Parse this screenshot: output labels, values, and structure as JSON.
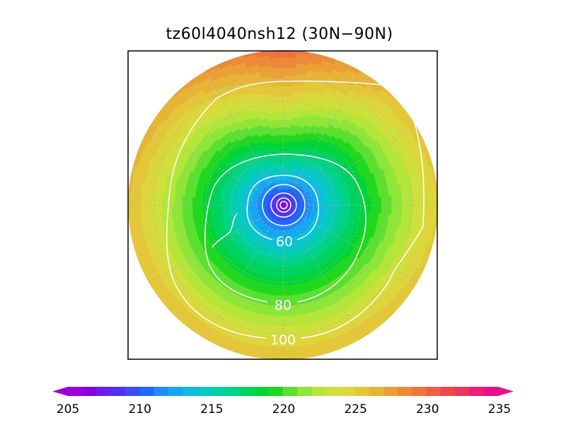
{
  "map": {
    "title": "tz60l4040nsh12 (30N−90N)",
    "projection": "north-polar-stereographic",
    "lat_range": [
      30,
      90
    ],
    "field": {
      "name": "",
      "units": "",
      "min_shown": 205,
      "max_shown": 235,
      "pole_value": 205,
      "rim_values_by_lon": [
        {
          "lon": 0,
          "value": 226
        },
        {
          "lon": 45,
          "value": 226
        },
        {
          "lon": 90,
          "value": 225
        },
        {
          "lon": 135,
          "value": 226
        },
        {
          "lon": 180,
          "value": 230
        },
        {
          "lon": 225,
          "value": 227
        },
        {
          "lon": 270,
          "value": 226
        },
        {
          "lon": 315,
          "value": 226
        }
      ]
    },
    "contours": [
      {
        "label": "60"
      },
      {
        "label": "80"
      },
      {
        "label": "100"
      }
    ],
    "grid": {
      "parallels_deg": [
        40,
        50,
        60,
        70,
        80
      ],
      "meridians_every_deg": 30,
      "style": "dotted",
      "color": "#aaaaaa"
    }
  },
  "colorbar": {
    "tick_labels": [
      "205",
      "210",
      "215",
      "220",
      "225",
      "230",
      "235"
    ],
    "colors": [
      "#a000d8",
      "#8a00e0",
      "#6e1ee8",
      "#5530f0",
      "#3c4cf8",
      "#2068fa",
      "#1f8cf8",
      "#14a8f0",
      "#10bce0",
      "#08c8c8",
      "#00d0a8",
      "#00d484",
      "#00d260",
      "#00d438",
      "#20d820",
      "#5ce030",
      "#8ee638",
      "#b4e63a",
      "#cfe03c",
      "#dcd63c",
      "#e3c63a",
      "#e8b438",
      "#eaa036",
      "#ec8a38",
      "#ee743e",
      "#f05c46",
      "#f0464e",
      "#ee3460",
      "#ec1e78",
      "#e8108c"
    ],
    "extend": "both"
  }
}
